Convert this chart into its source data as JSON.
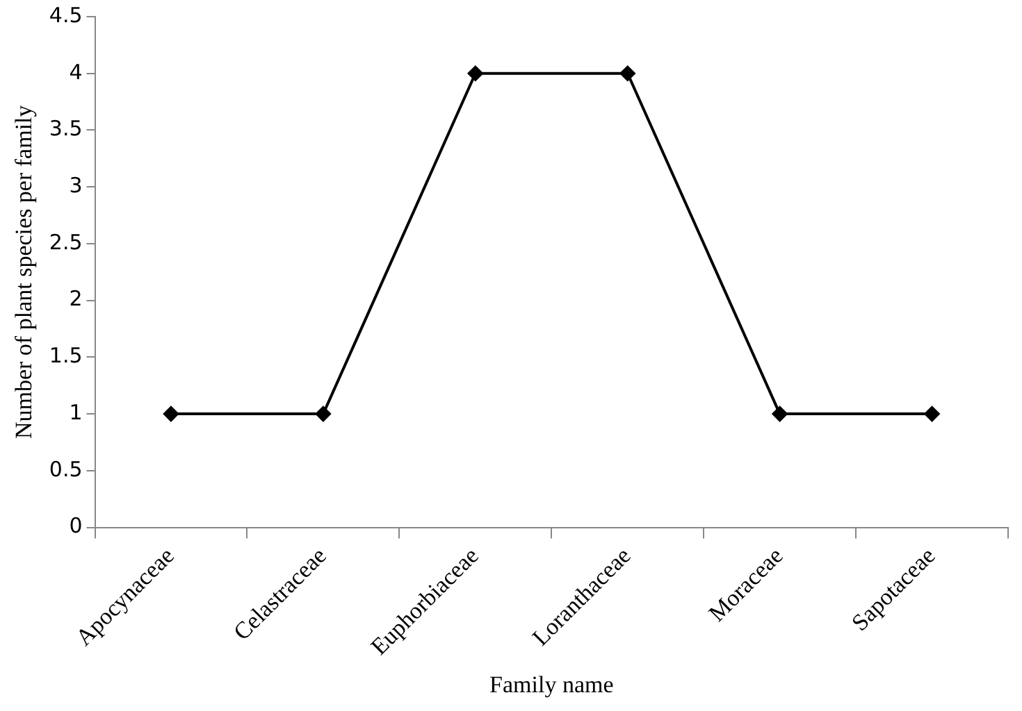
{
  "chart_data": {
    "type": "line",
    "xlabel": "Family name",
    "ylabel": "Number of plant species per family",
    "categories": [
      "Apocynaceae",
      "Celastraceae",
      "Euphorbiaceae",
      "Loranthaceae",
      "Moraceae",
      "Sapotaceae"
    ],
    "series": [
      {
        "color": "#000000",
        "values": [
          1,
          1,
          4,
          4,
          1,
          1
        ]
      }
    ],
    "ylim": [
      0,
      4.5
    ],
    "yticks": [
      0,
      0.5,
      1,
      1.5,
      2,
      2.5,
      3,
      3.5,
      4,
      4.5
    ],
    "grid": false,
    "legend": false,
    "marker": "diamond",
    "line_style": "solid"
  }
}
